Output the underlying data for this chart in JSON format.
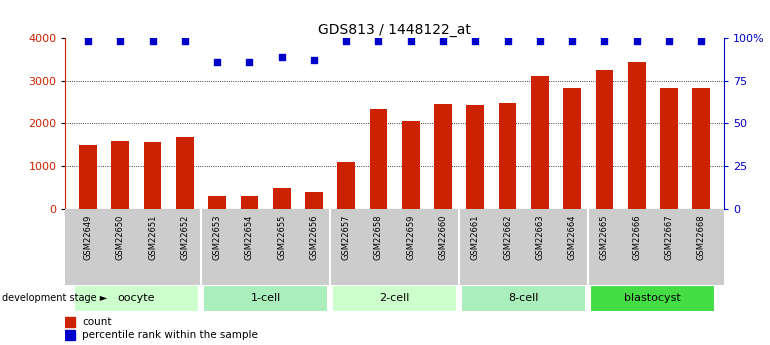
{
  "title": "GDS813 / 1448122_at",
  "samples": [
    "GSM22649",
    "GSM22650",
    "GSM22651",
    "GSM22652",
    "GSM22653",
    "GSM22654",
    "GSM22655",
    "GSM22656",
    "GSM22657",
    "GSM22658",
    "GSM22659",
    "GSM22660",
    "GSM22661",
    "GSM22662",
    "GSM22663",
    "GSM22664",
    "GSM22665",
    "GSM22666",
    "GSM22667",
    "GSM22668"
  ],
  "counts": [
    1490,
    1575,
    1560,
    1680,
    290,
    290,
    490,
    390,
    1090,
    2330,
    2050,
    2460,
    2420,
    2470,
    3120,
    2820,
    3240,
    3440,
    2820,
    2820
  ],
  "percentile": [
    98,
    98,
    98,
    98,
    86,
    86,
    89,
    87,
    98,
    98,
    98,
    98,
    98,
    98,
    98,
    98,
    98,
    98,
    98,
    98
  ],
  "groups": [
    {
      "label": "oocyte",
      "start": 0,
      "end": 4,
      "color": "#ccffcc"
    },
    {
      "label": "1-cell",
      "start": 4,
      "end": 8,
      "color": "#aaeebb"
    },
    {
      "label": "2-cell",
      "start": 8,
      "end": 12,
      "color": "#ccffcc"
    },
    {
      "label": "8-cell",
      "start": 12,
      "end": 16,
      "color": "#aaeebb"
    },
    {
      "label": "blastocyst",
      "start": 16,
      "end": 20,
      "color": "#44dd44"
    }
  ],
  "bar_color": "#cc2200",
  "dot_color": "#0000cc",
  "ylim_left": [
    0,
    4000
  ],
  "ylim_right": [
    0,
    100
  ],
  "yticks_left": [
    0,
    1000,
    2000,
    3000,
    4000
  ],
  "yticks_right": [
    0,
    25,
    50,
    75,
    100
  ],
  "yticklabels_right": [
    "0",
    "25",
    "50",
    "75",
    "100%"
  ],
  "background_color": "#ffffff",
  "label_count": "count",
  "label_percentile": "percentile rank within the sample",
  "dev_stage_label": "development stage"
}
